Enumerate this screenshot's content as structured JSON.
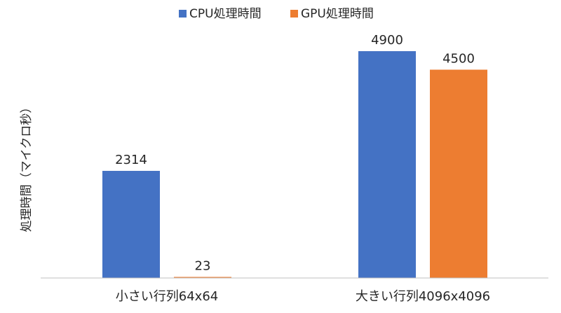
{
  "chart_data": {
    "type": "bar",
    "title": "",
    "ylabel": "処理時間（マイクロ秒）",
    "xlabel": "",
    "categories": [
      "小さい行列64x64",
      "大きい行列4096x4096"
    ],
    "series": [
      {
        "name": "CPU処理時間",
        "color": "#4472C4",
        "values": [
          2314,
          4900
        ]
      },
      {
        "name": "GPU処理時間",
        "color": "#ED7D31",
        "values": [
          23,
          4500
        ]
      }
    ],
    "data_labels": [
      [
        "2314",
        "23"
      ],
      [
        "4900",
        "4500"
      ]
    ],
    "ylim": [
      0,
      5400
    ],
    "grid": false,
    "legend": "top-center"
  }
}
